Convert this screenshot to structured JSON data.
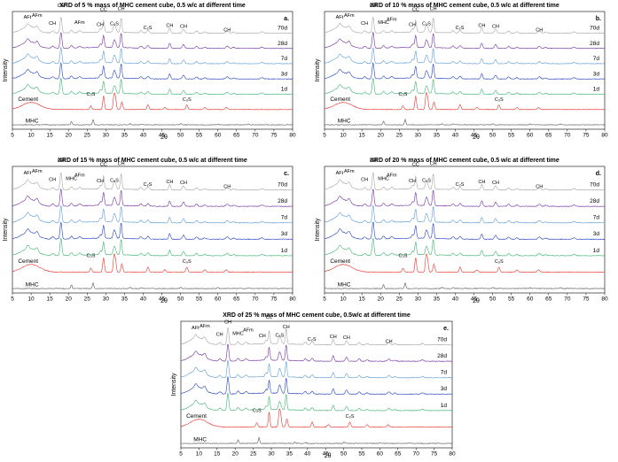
{
  "colors": {
    "MHC": "#555555",
    "Cement": "#e8322b",
    "1d": "#3cb371",
    "3d": "#1f3fbf",
    "7d": "#5b9bd5",
    "28d": "#7030a0",
    "70d": "#a6a6a6"
  },
  "chart_data": [
    {
      "type": "line",
      "panel_label": "a.",
      "title": "XRD of 5 % mass of MHC cement cube, 0.5 w/c at different time",
      "xlabel": "2θ",
      "ylabel": "Intensity",
      "xlim": [
        5,
        80
      ],
      "xticks": [
        5,
        10,
        15,
        20,
        25,
        30,
        35,
        40,
        45,
        50,
        55,
        60,
        65,
        70,
        75,
        80
      ],
      "series": [
        {
          "name": "MHC",
          "offset": 0
        },
        {
          "name": "Cement",
          "offset": 1
        },
        {
          "name": "1d",
          "offset": 2
        },
        {
          "name": "3d",
          "offset": 3
        },
        {
          "name": "7d",
          "offset": 4
        },
        {
          "name": "28d",
          "offset": 5
        },
        {
          "name": "70d",
          "offset": 6
        }
      ],
      "annotations": [
        {
          "text": "AFt",
          "x": 9,
          "level": 6.95
        },
        {
          "text": "AFm",
          "x": 11.6,
          "level": 7.05
        },
        {
          "text": "CH",
          "x": 15.7,
          "level": 6.55
        },
        {
          "text": "CH",
          "x": 18.0,
          "level": 7.7
        },
        {
          "text": "AFm",
          "x": 23,
          "level": 6.6
        },
        {
          "text": "CH",
          "x": 28.5,
          "level": 6.45
        },
        {
          "text": "CC̄",
          "x": 29.4,
          "level": 7.45
        },
        {
          "text": "C₃S",
          "x": 32.3,
          "level": 6.5
        },
        {
          "text": "CH",
          "x": 34.1,
          "level": 7.5
        },
        {
          "text": "C₂S",
          "x": 41.2,
          "level": 6.25
        },
        {
          "text": "CH",
          "x": 47.1,
          "level": 6.4
        },
        {
          "text": "CH",
          "x": 50.8,
          "level": 6.35
        },
        {
          "text": "CH",
          "x": 62.5,
          "level": 6.1
        },
        {
          "text": "C₃S",
          "x": 26.0,
          "level": 1.9
        },
        {
          "text": "C₃S",
          "x": 51.7,
          "level": 1.55
        }
      ]
    },
    {
      "type": "line",
      "panel_label": "b.",
      "title": "XRD of 10 % mass of MHC cement cube, 0.5 w/c at different time",
      "xlabel": "2θ",
      "ylabel": "Intensity",
      "xlim": [
        5,
        80
      ],
      "xticks": [
        5,
        10,
        15,
        20,
        25,
        30,
        35,
        40,
        45,
        50,
        55,
        60,
        65,
        70,
        75,
        80
      ],
      "series": [
        {
          "name": "MHC",
          "offset": 0
        },
        {
          "name": "Cement",
          "offset": 1
        },
        {
          "name": "1d",
          "offset": 2
        },
        {
          "name": "3d",
          "offset": 3
        },
        {
          "name": "7d",
          "offset": 4
        },
        {
          "name": "28d",
          "offset": 5
        },
        {
          "name": "70d",
          "offset": 6
        }
      ],
      "annotations": [
        {
          "text": "AFt",
          "x": 9,
          "level": 6.95
        },
        {
          "text": "AFm",
          "x": 11.6,
          "level": 7.05
        },
        {
          "text": "CH",
          "x": 15.7,
          "level": 6.55
        },
        {
          "text": "CH",
          "x": 18.0,
          "level": 7.7
        },
        {
          "text": "MHC",
          "x": 20.8,
          "level": 6.6
        },
        {
          "text": "AFm",
          "x": 23,
          "level": 6.8
        },
        {
          "text": "CH",
          "x": 28.5,
          "level": 6.45
        },
        {
          "text": "CC̄",
          "x": 29.4,
          "level": 7.45
        },
        {
          "text": "C₃S",
          "x": 32.3,
          "level": 6.5
        },
        {
          "text": "CH",
          "x": 34.1,
          "level": 7.5
        },
        {
          "text": "C₂S",
          "x": 41.2,
          "level": 6.25
        },
        {
          "text": "CH",
          "x": 47.1,
          "level": 6.4
        },
        {
          "text": "CH",
          "x": 50.8,
          "level": 6.35
        },
        {
          "text": "CH",
          "x": 62.5,
          "level": 6.1
        },
        {
          "text": "C₃S",
          "x": 26.0,
          "level": 1.9
        },
        {
          "text": "C₃S",
          "x": 51.7,
          "level": 1.55
        }
      ]
    },
    {
      "type": "line",
      "panel_label": "c.",
      "title": "XRD of 15 % mass of MHC cement cube, 0.5 w/c at different time",
      "xlabel": "2θ",
      "ylabel": "Intensity",
      "xlim": [
        5,
        80
      ],
      "xticks": [
        5,
        10,
        15,
        20,
        25,
        30,
        35,
        40,
        45,
        50,
        55,
        60,
        65,
        70,
        75,
        80
      ],
      "series": [
        {
          "name": "MHC",
          "offset": 0
        },
        {
          "name": "Cement",
          "offset": 1
        },
        {
          "name": "1d",
          "offset": 2
        },
        {
          "name": "3d",
          "offset": 3
        },
        {
          "name": "7d",
          "offset": 4
        },
        {
          "name": "28d",
          "offset": 5
        },
        {
          "name": "70d",
          "offset": 6
        }
      ],
      "annotations": [
        {
          "text": "AFt",
          "x": 9,
          "level": 6.95
        },
        {
          "text": "AFm",
          "x": 11.6,
          "level": 7.05
        },
        {
          "text": "CH",
          "x": 15.7,
          "level": 6.55
        },
        {
          "text": "CH",
          "x": 18.0,
          "level": 7.7
        },
        {
          "text": "MHC",
          "x": 20.8,
          "level": 6.6
        },
        {
          "text": "AFm",
          "x": 23,
          "level": 6.8
        },
        {
          "text": "CH",
          "x": 28.5,
          "level": 6.45
        },
        {
          "text": "CC̄",
          "x": 29.4,
          "level": 7.45
        },
        {
          "text": "C₃S",
          "x": 32.3,
          "level": 6.5
        },
        {
          "text": "CH",
          "x": 34.1,
          "level": 7.5
        },
        {
          "text": "C₂S",
          "x": 41.2,
          "level": 6.25
        },
        {
          "text": "CH",
          "x": 47.1,
          "level": 6.4
        },
        {
          "text": "CH",
          "x": 50.8,
          "level": 6.35
        },
        {
          "text": "CH",
          "x": 62.5,
          "level": 6.1
        },
        {
          "text": "C₃S",
          "x": 26.0,
          "level": 1.9
        },
        {
          "text": "C₃S",
          "x": 51.7,
          "level": 1.55
        }
      ]
    },
    {
      "type": "line",
      "panel_label": "d.",
      "title": "XRD of 20 % mass of MHC cement cube, 0.5 w/c at different time",
      "xlabel": "2θ",
      "ylabel": "Intensity",
      "xlim": [
        5,
        80
      ],
      "xticks": [
        5,
        10,
        15,
        20,
        25,
        30,
        35,
        40,
        45,
        50,
        55,
        60,
        65,
        70,
        75,
        80
      ],
      "series": [
        {
          "name": "MHC",
          "offset": 0
        },
        {
          "name": "Cement",
          "offset": 1
        },
        {
          "name": "1d",
          "offset": 2
        },
        {
          "name": "3d",
          "offset": 3
        },
        {
          "name": "7d",
          "offset": 4
        },
        {
          "name": "28d",
          "offset": 5
        },
        {
          "name": "70d",
          "offset": 6
        }
      ],
      "annotations": [
        {
          "text": "AFt",
          "x": 9,
          "level": 6.95
        },
        {
          "text": "AFm",
          "x": 11.6,
          "level": 7.05
        },
        {
          "text": "CH",
          "x": 15.7,
          "level": 6.55
        },
        {
          "text": "CH",
          "x": 18.0,
          "level": 7.7
        },
        {
          "text": "MHC",
          "x": 20.8,
          "level": 6.6
        },
        {
          "text": "AFm",
          "x": 23,
          "level": 6.8
        },
        {
          "text": "CH",
          "x": 28.5,
          "level": 6.45
        },
        {
          "text": "CC̄",
          "x": 29.4,
          "level": 7.45
        },
        {
          "text": "C₃S",
          "x": 32.3,
          "level": 6.5
        },
        {
          "text": "CH",
          "x": 34.1,
          "level": 7.5
        },
        {
          "text": "C₂S",
          "x": 41.2,
          "level": 6.25
        },
        {
          "text": "CH",
          "x": 47.1,
          "level": 6.4
        },
        {
          "text": "CH",
          "x": 50.8,
          "level": 6.35
        },
        {
          "text": "CH",
          "x": 62.5,
          "level": 6.1
        },
        {
          "text": "C₃S",
          "x": 26.0,
          "level": 1.9
        },
        {
          "text": "C₃S",
          "x": 51.7,
          "level": 1.55
        }
      ]
    },
    {
      "type": "line",
      "panel_label": "e.",
      "title": "XRD of 25 % mass of MHC cement cube, 0.5w/c at different time",
      "xlabel": "2θ",
      "ylabel": "Intensity",
      "xlim": [
        5,
        80
      ],
      "xticks": [
        5,
        10,
        15,
        20,
        25,
        30,
        35,
        40,
        45,
        50,
        55,
        60,
        65,
        70,
        75,
        80
      ],
      "series": [
        {
          "name": "MHC",
          "offset": 0
        },
        {
          "name": "Cement",
          "offset": 1
        },
        {
          "name": "1d",
          "offset": 2
        },
        {
          "name": "3d",
          "offset": 3
        },
        {
          "name": "7d",
          "offset": 4
        },
        {
          "name": "28d",
          "offset": 5
        },
        {
          "name": "70d",
          "offset": 6
        }
      ],
      "annotations": [
        {
          "text": "AFt",
          "x": 9,
          "level": 6.95
        },
        {
          "text": "AFm",
          "x": 11.6,
          "level": 7.05
        },
        {
          "text": "CH",
          "x": 15.7,
          "level": 6.55
        },
        {
          "text": "CH",
          "x": 18.0,
          "level": 7.3
        },
        {
          "text": "MHC",
          "x": 20.8,
          "level": 6.6
        },
        {
          "text": "AFm",
          "x": 23.6,
          "level": 6.8
        },
        {
          "text": "CH",
          "x": 27.5,
          "level": 6.45
        },
        {
          "text": "CC̄",
          "x": 29.4,
          "level": 7.6
        },
        {
          "text": "C₃S",
          "x": 32.3,
          "level": 6.5
        },
        {
          "text": "CH",
          "x": 34.1,
          "level": 7.0
        },
        {
          "text": "C₂S",
          "x": 41.2,
          "level": 6.25
        },
        {
          "text": "CH",
          "x": 47.1,
          "level": 6.4
        },
        {
          "text": "CH",
          "x": 50.8,
          "level": 6.35
        },
        {
          "text": "CH",
          "x": 62.5,
          "level": 6.1
        },
        {
          "text": "C₃S",
          "x": 26.0,
          "level": 1.9
        },
        {
          "text": "C₃S",
          "x": 51.7,
          "level": 1.55
        }
      ]
    }
  ]
}
